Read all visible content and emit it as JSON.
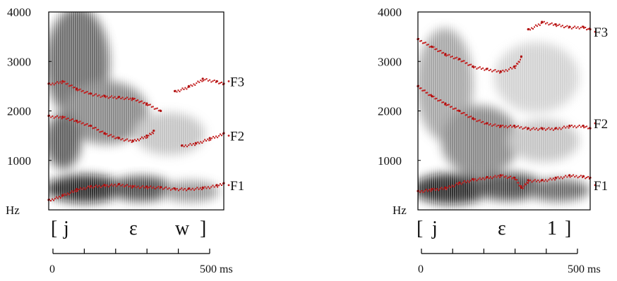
{
  "chart_data": [
    {
      "type": "spectrogram",
      "y_tick_labels": [
        "4000",
        "3000",
        "2000",
        "1000"
      ],
      "y_ticks": [
        4000,
        3000,
        2000,
        1000
      ],
      "y_unit_label": "Hz",
      "ylim": [
        0,
        4000
      ],
      "xlim": [
        0,
        500
      ],
      "x_axis_start_label": "0",
      "x_axis_end_label": "500 ms",
      "segment_labels": [
        "[",
        "j",
        "ε",
        "w",
        "]"
      ],
      "formant_labels": [
        "F3",
        "F2",
        "F1"
      ],
      "formant_label_values": [
        2600,
        1500,
        500
      ],
      "series": [
        {
          "name": "F1",
          "x": [
            0,
            40,
            80,
            120,
            160,
            200,
            240,
            280,
            320,
            360,
            400,
            440,
            480,
            500
          ],
          "y": [
            200,
            300,
            420,
            480,
            500,
            520,
            480,
            470,
            460,
            430,
            430,
            450,
            500,
            540
          ]
        },
        {
          "name": "F2",
          "x": [
            0,
            40,
            80,
            120,
            160,
            200,
            240,
            280,
            300
          ],
          "y": [
            1900,
            1880,
            1800,
            1700,
            1550,
            1450,
            1400,
            1500,
            1600
          ]
        },
        {
          "name": "F2",
          "x": [
            380,
            420,
            460,
            500
          ],
          "y": [
            1300,
            1350,
            1450,
            1550
          ]
        },
        {
          "name": "F3",
          "x": [
            0,
            40,
            80,
            120,
            160,
            200,
            240,
            280,
            320
          ],
          "y": [
            2550,
            2600,
            2450,
            2350,
            2300,
            2280,
            2250,
            2150,
            2000
          ]
        },
        {
          "name": "F3",
          "x": [
            360,
            400,
            440,
            480,
            500
          ],
          "y": [
            2400,
            2500,
            2650,
            2600,
            2550
          ]
        }
      ]
    },
    {
      "type": "spectrogram",
      "y_tick_labels": [
        "4000",
        "3000",
        "2000",
        "1000"
      ],
      "y_ticks": [
        4000,
        3000,
        2000,
        1000
      ],
      "y_unit_label": "Hz",
      "ylim": [
        0,
        4000
      ],
      "xlim": [
        0,
        500
      ],
      "x_axis_start_label": "0",
      "x_axis_end_label": "500 ms",
      "segment_labels": [
        "[",
        "j",
        "ε",
        "1",
        "]"
      ],
      "formant_labels": [
        "F3",
        "F2",
        "F1"
      ],
      "formant_label_values": [
        3600,
        1750,
        500
      ],
      "series": [
        {
          "name": "F1",
          "x": [
            0,
            40,
            80,
            120,
            160,
            200,
            240,
            280,
            300,
            320,
            360,
            400,
            440,
            480,
            500
          ],
          "y": [
            380,
            420,
            450,
            550,
            620,
            660,
            700,
            650,
            450,
            600,
            600,
            650,
            700,
            680,
            650
          ]
        },
        {
          "name": "F2",
          "x": [
            0,
            40,
            80,
            120,
            160,
            200,
            240,
            280,
            320,
            360,
            400,
            440,
            480,
            500
          ],
          "y": [
            2500,
            2300,
            2150,
            2000,
            1850,
            1750,
            1700,
            1700,
            1650,
            1650,
            1650,
            1700,
            1700,
            1650
          ]
        },
        {
          "name": "F3",
          "x": [
            0,
            40,
            80,
            120,
            160,
            200,
            240,
            280,
            300
          ],
          "y": [
            3450,
            3300,
            3150,
            3050,
            2900,
            2850,
            2800,
            2900,
            3100
          ]
        },
        {
          "name": "F3",
          "x": [
            320,
            360,
            400,
            440,
            480,
            500
          ],
          "y": [
            3650,
            3800,
            3750,
            3700,
            3700,
            3650
          ]
        }
      ]
    }
  ]
}
